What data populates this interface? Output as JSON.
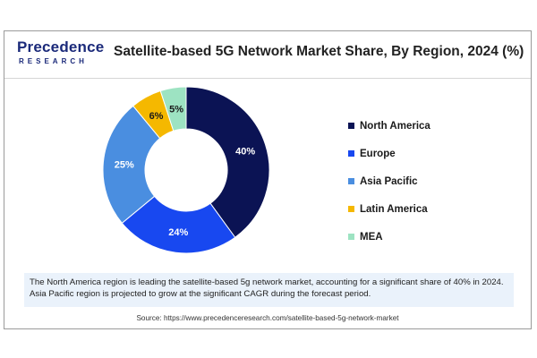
{
  "brand": {
    "name": "Precedence",
    "subtitle": "RESEARCH"
  },
  "title": "Satellite-based 5G Network Market Share, By Region, 2024 (%)",
  "note": {
    "line1": "The North America region is leading the satellite-based 5g network market, accounting for a significant share of 40% in 2024.",
    "line2": "Asia Pacific region is projected to grow at the significant CAGR during the forecast period."
  },
  "source": "Source: https://www.precedenceresearch.com/satellite-based-5g-network-market",
  "chart_data": {
    "type": "pie",
    "donut": true,
    "legend_position": "right",
    "categories": [
      "North America",
      "Europe",
      "Asia Pacific",
      "Latin America",
      "MEA"
    ],
    "values": [
      40,
      24,
      25,
      6,
      5
    ],
    "labels": [
      "40%",
      "24%",
      "25%",
      "6%",
      "5%"
    ],
    "colors": [
      "#0b1354",
      "#1848f0",
      "#4a8ee0",
      "#f5b800",
      "#9de3c2"
    ]
  }
}
